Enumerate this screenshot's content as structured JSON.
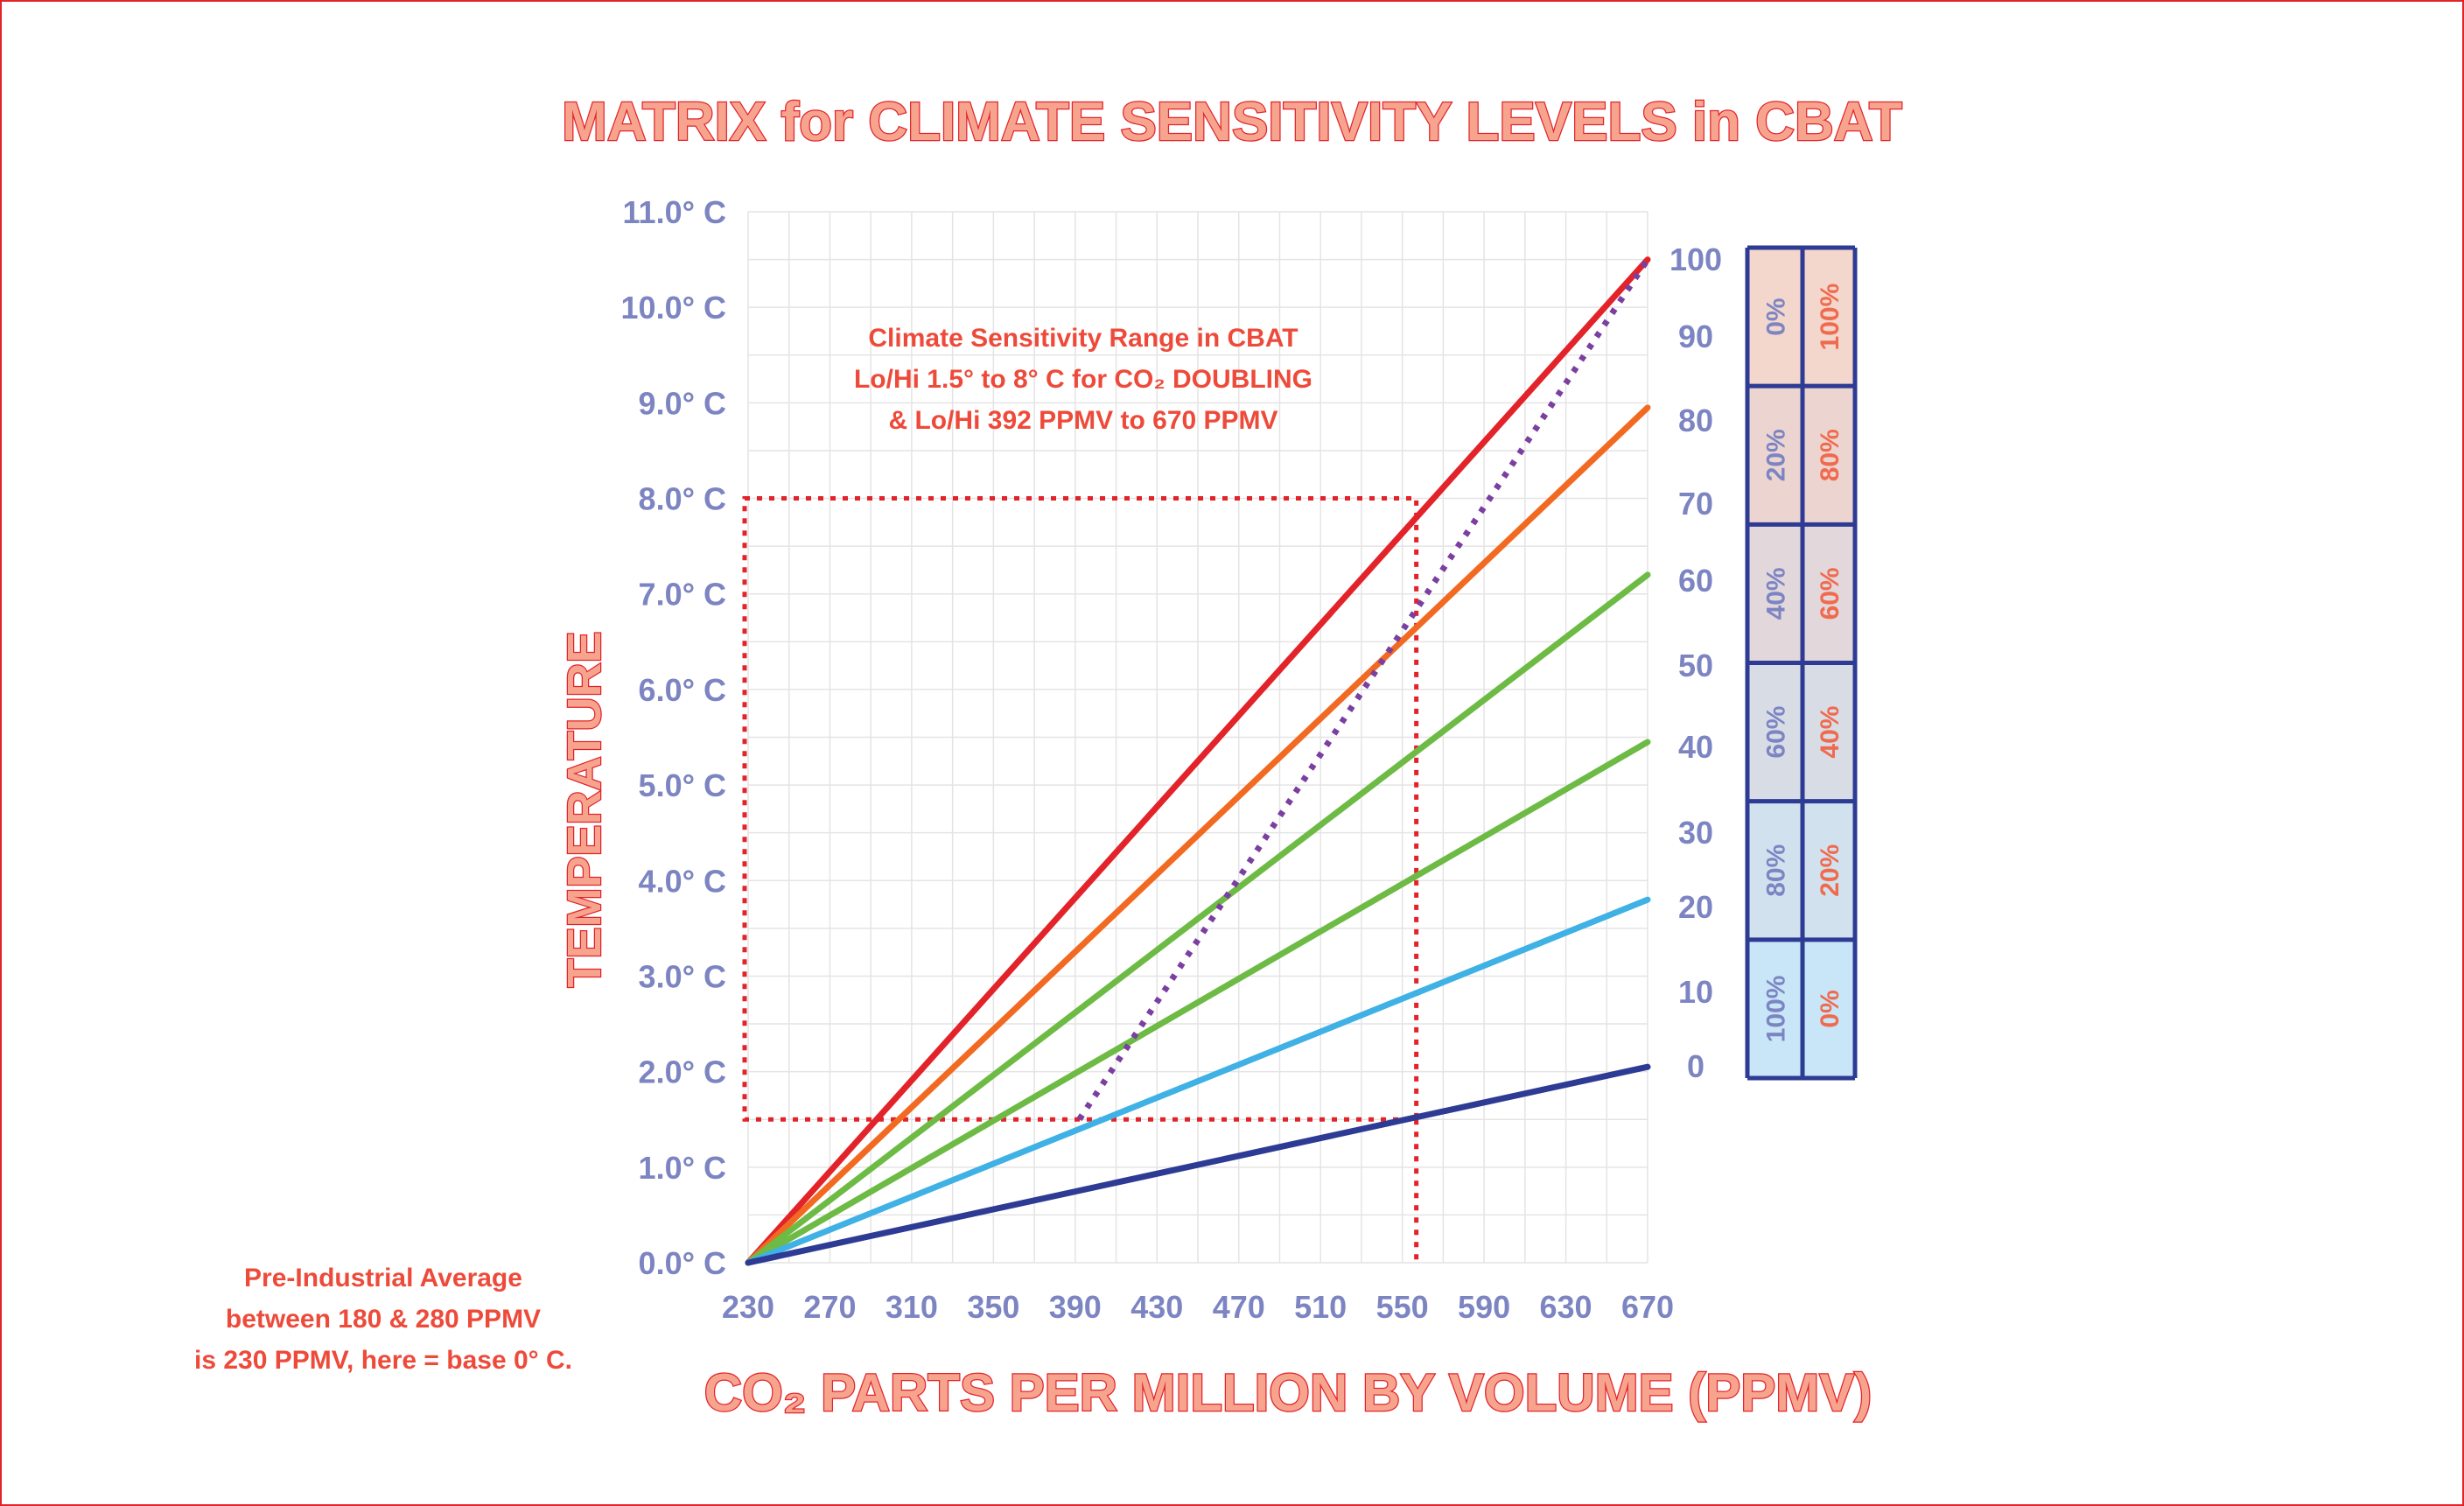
{
  "title": "MATRIX for CLIMATE SENSITIVITY LEVELS in CBAT",
  "colors": {
    "border": "#e3232a",
    "axis_text": "#7c85c2",
    "title_fill": "#f7a48f",
    "title_stroke": "#e3232a",
    "note_text": "#ee4a3a",
    "grid": "#e4e4e4",
    "dotted_red": "#e3232a",
    "dotted_purple": "#7a3fa0"
  },
  "annotation": {
    "lines": [
      "Climate Sensitivity Range in CBAT",
      "Lo/Hi 1.5° to 8° C  for CO₂ DOUBLING",
      "& Lo/Hi 392 PPMV to 670 PPMV"
    ]
  },
  "footnote": {
    "lines": [
      "Pre-Industrial Average",
      "between 180 & 280 PPMV",
      "is 230 PPMV, here = base 0° C."
    ]
  },
  "chart_data": {
    "type": "line",
    "xlabel": "CO₂ PARTS PER MILLION BY VOLUME (PPMV)",
    "ylabel": "TEMPERATURE",
    "xlim": [
      230,
      670
    ],
    "ylim": [
      0,
      11
    ],
    "x_ticks": [
      "230",
      "270",
      "310",
      "350",
      "390",
      "430",
      "470",
      "510",
      "550",
      "590",
      "630",
      "670"
    ],
    "y_ticks": [
      "0.0° C",
      "1.0° C",
      "2.0° C",
      "3.0° C",
      "4.0° C",
      "5.0° C",
      "6.0° C",
      "7.0° C",
      "8.0° C",
      "9.0° C",
      "10.0° C",
      "11.0° C"
    ],
    "right_axis_ticks": [
      "0",
      "10",
      "20",
      "30",
      "40",
      "50",
      "60",
      "70",
      "80",
      "90",
      "100"
    ],
    "grid": true,
    "series": [
      {
        "color": "#e3232a",
        "x": [
          230,
          670
        ],
        "y": [
          0,
          10.5
        ]
      },
      {
        "color": "#f26a22",
        "x": [
          230,
          670
        ],
        "y": [
          0,
          8.95
        ]
      },
      {
        "color": "#6dbb45",
        "x": [
          230,
          670
        ],
        "y": [
          0,
          7.2
        ]
      },
      {
        "color": "#6dbb45",
        "x": [
          230,
          670
        ],
        "y": [
          0,
          5.45
        ]
      },
      {
        "color": "#3fb1e5",
        "x": [
          230,
          670
        ],
        "y": [
          0,
          3.8
        ]
      },
      {
        "color": "#2e3b94",
        "x": [
          230,
          670
        ],
        "y": [
          0,
          2.05
        ]
      }
    ],
    "dotted_purple_line": {
      "color": "#7a3fa0",
      "x": [
        392,
        670
      ],
      "y": [
        1.5,
        10.5
      ]
    },
    "dotted_red_box": {
      "x": [
        230,
        556
      ],
      "y": [
        1.5,
        8.0
      ]
    },
    "matrix_table": {
      "rows": [
        {
          "left": "0%",
          "right": "100%",
          "fill": "#f3d6cc"
        },
        {
          "left": "20%",
          "right": "80%",
          "fill": "#ecd5d0"
        },
        {
          "left": "40%",
          "right": "60%",
          "fill": "#e2d7da"
        },
        {
          "left": "60%",
          "right": "40%",
          "fill": "#d8dce5"
        },
        {
          "left": "80%",
          "right": "20%",
          "fill": "#d1e2ee"
        },
        {
          "left": "100%",
          "right": "0%",
          "fill": "#c8e6f7"
        }
      ]
    }
  }
}
